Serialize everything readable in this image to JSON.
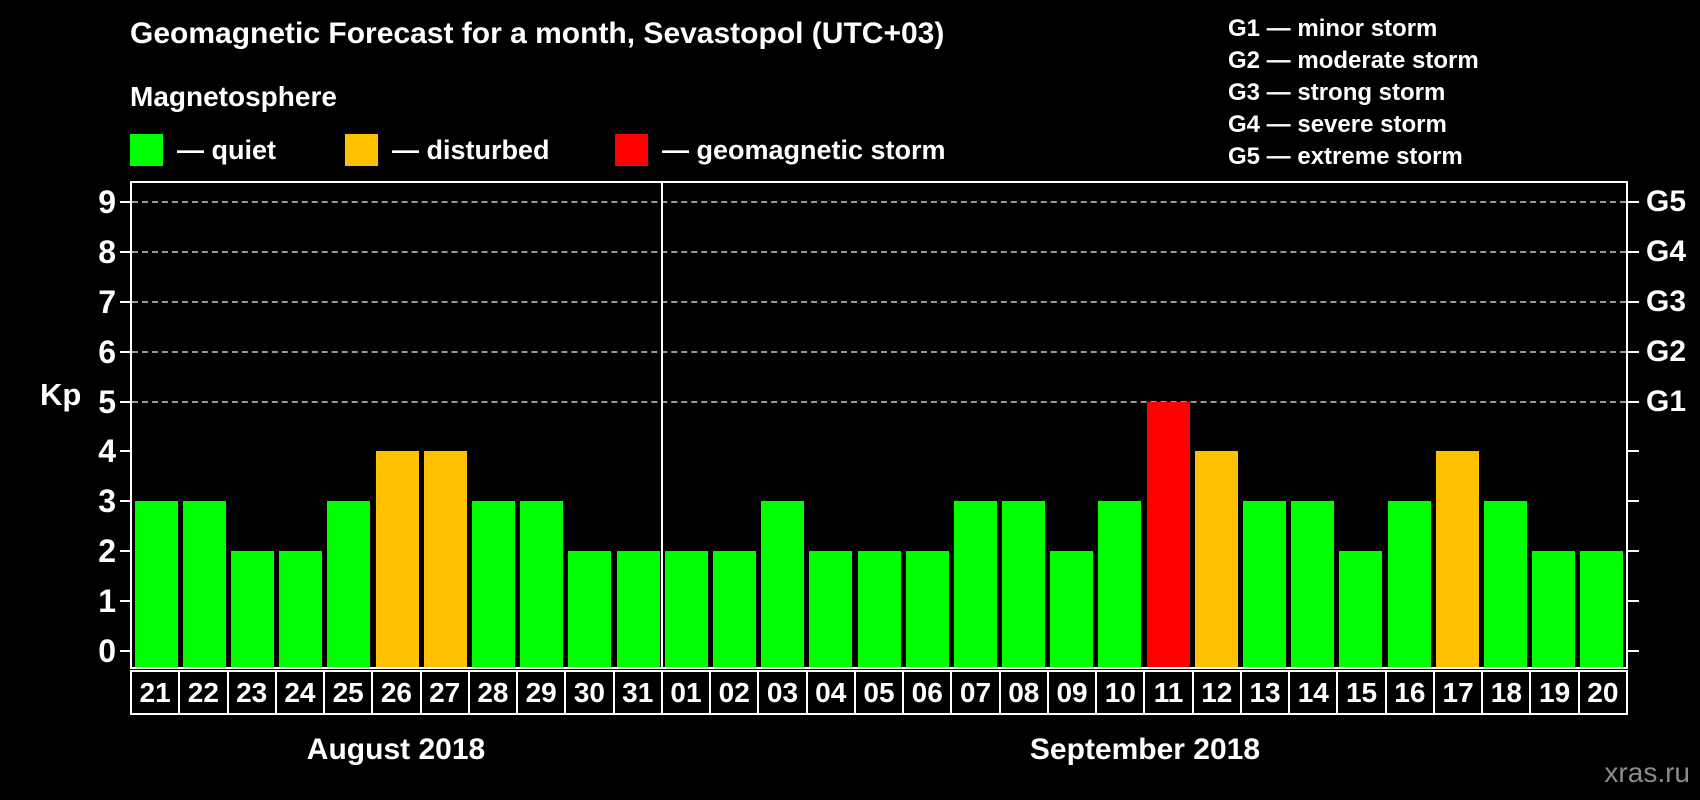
{
  "title": "Geomagnetic Forecast for a month, Sevastopol (UTC+03)",
  "legend": {
    "heading": "Magnetosphere",
    "items": [
      {
        "key": "quiet",
        "label": "— quiet",
        "color": "#00ff00"
      },
      {
        "key": "disturbed",
        "label": "— disturbed",
        "color": "#ffc000"
      },
      {
        "key": "storm",
        "label": "— geomagnetic storm",
        "color": "#ff0000"
      }
    ]
  },
  "g_legend": [
    "G1 — minor storm",
    "G2 — moderate storm",
    "G3 — strong storm",
    "G4 — severe storm",
    "G5 — extreme storm"
  ],
  "watermark": "xras.ru",
  "chart_data": {
    "type": "bar",
    "title": "Geomagnetic Forecast for a month, Sevastopol (UTC+03)",
    "ylabel": "Kp",
    "ylim": [
      0,
      9
    ],
    "yticks": [
      "0",
      "1",
      "2",
      "3",
      "4",
      "5",
      "6",
      "7",
      "8",
      "9"
    ],
    "gridlines_at": [
      5,
      6,
      7,
      8,
      9
    ],
    "grid_style": "dashed gray horizontal lines at storm levels",
    "right_axis_labels": [
      {
        "kp": 5,
        "label": "G1"
      },
      {
        "kp": 6,
        "label": "G2"
      },
      {
        "kp": 7,
        "label": "G3"
      },
      {
        "kp": 8,
        "label": "G4"
      },
      {
        "kp": 9,
        "label": "G5"
      }
    ],
    "legend_position": "top-left",
    "months": [
      {
        "label": "August 2018",
        "bars": [
          {
            "day": "21",
            "kp": 3,
            "status": "quiet"
          },
          {
            "day": "22",
            "kp": 3,
            "status": "quiet"
          },
          {
            "day": "23",
            "kp": 2,
            "status": "quiet"
          },
          {
            "day": "24",
            "kp": 2,
            "status": "quiet"
          },
          {
            "day": "25",
            "kp": 3,
            "status": "quiet"
          },
          {
            "day": "26",
            "kp": 4,
            "status": "disturbed"
          },
          {
            "day": "27",
            "kp": 4,
            "status": "disturbed"
          },
          {
            "day": "28",
            "kp": 3,
            "status": "quiet"
          },
          {
            "day": "29",
            "kp": 3,
            "status": "quiet"
          },
          {
            "day": "30",
            "kp": 2,
            "status": "quiet"
          },
          {
            "day": "31",
            "kp": 2,
            "status": "quiet"
          }
        ]
      },
      {
        "label": "September 2018",
        "bars": [
          {
            "day": "01",
            "kp": 2,
            "status": "quiet"
          },
          {
            "day": "02",
            "kp": 2,
            "status": "quiet"
          },
          {
            "day": "03",
            "kp": 3,
            "status": "quiet"
          },
          {
            "day": "04",
            "kp": 2,
            "status": "quiet"
          },
          {
            "day": "05",
            "kp": 2,
            "status": "quiet"
          },
          {
            "day": "06",
            "kp": 2,
            "status": "quiet"
          },
          {
            "day": "07",
            "kp": 3,
            "status": "quiet"
          },
          {
            "day": "08",
            "kp": 3,
            "status": "quiet"
          },
          {
            "day": "09",
            "kp": 2,
            "status": "quiet"
          },
          {
            "day": "10",
            "kp": 3,
            "status": "quiet"
          },
          {
            "day": "11",
            "kp": 5,
            "status": "storm"
          },
          {
            "day": "12",
            "kp": 4,
            "status": "disturbed"
          },
          {
            "day": "13",
            "kp": 3,
            "status": "quiet"
          },
          {
            "day": "14",
            "kp": 3,
            "status": "quiet"
          },
          {
            "day": "15",
            "kp": 2,
            "status": "quiet"
          },
          {
            "day": "16",
            "kp": 3,
            "status": "quiet"
          },
          {
            "day": "17",
            "kp": 4,
            "status": "disturbed"
          },
          {
            "day": "18",
            "kp": 3,
            "status": "quiet"
          },
          {
            "day": "19",
            "kp": 2,
            "status": "quiet"
          },
          {
            "day": "20",
            "kp": 2,
            "status": "quiet"
          }
        ]
      }
    ]
  }
}
